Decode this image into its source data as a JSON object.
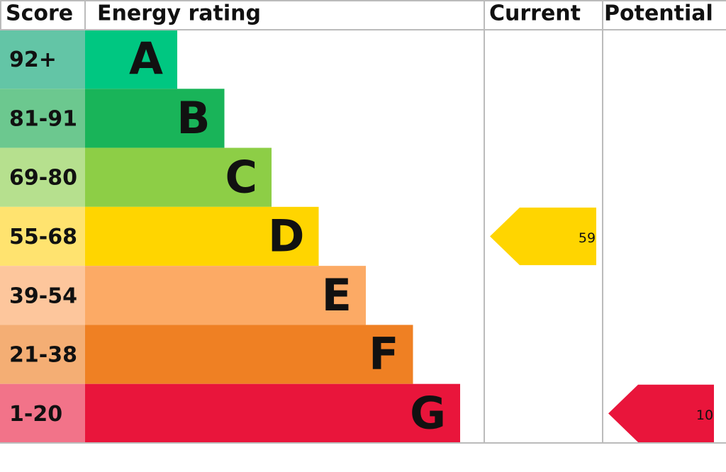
{
  "chart_data": {
    "type": "epc",
    "headers": [
      "Score",
      "Energy rating",
      "Current",
      "Potential"
    ],
    "bands": [
      {
        "range": "92+",
        "letter": "A",
        "color": "#00c781",
        "score_color": "#63c5a6"
      },
      {
        "range": "81-91",
        "letter": "B",
        "color": "#19b459",
        "score_color": "#6cc88f"
      },
      {
        "range": "69-80",
        "letter": "C",
        "color": "#8dce46",
        "score_color": "#b6e08e"
      },
      {
        "range": "55-68",
        "letter": "D",
        "color": "#ffd500",
        "score_color": "#ffe36f"
      },
      {
        "range": "39-54",
        "letter": "E",
        "color": "#fcaa65",
        "score_color": "#fdc69c"
      },
      {
        "range": "21-38",
        "letter": "F",
        "color": "#ef8023",
        "score_color": "#f4ae74"
      },
      {
        "range": "1-20",
        "letter": "G",
        "color": "#e9153b",
        "score_color": "#f27389"
      }
    ],
    "current": 59,
    "potential": 10
  }
}
